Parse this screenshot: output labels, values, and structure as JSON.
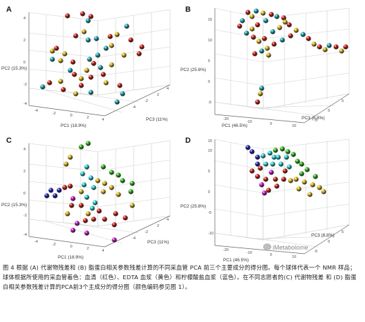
{
  "header_fragment": "",
  "panels": [
    {
      "id": "A",
      "pc2_label": "PC2 (15.3%)",
      "pc1_label": "PC1 (18.9%)",
      "pc3_label": "PC3 (11%)",
      "ticks_left": [
        "4",
        "2",
        "0",
        "-2",
        "-4"
      ],
      "ticks_bottom": [
        "-4",
        "-2",
        "0",
        "2",
        "4"
      ],
      "ticks_right": [
        "-4",
        "-2",
        "2",
        "4"
      ]
    },
    {
      "id": "B",
      "pc2_label": "PC2 (25.8%)",
      "pc1_label": "PC1 (46.5%)",
      "pc3_label": "PC3 (8.8%)",
      "ticks_left": [
        "-5",
        "0",
        "5",
        "10",
        "15"
      ],
      "ticks_bottom": [
        "-20",
        "-10",
        "0",
        "10"
      ],
      "ticks_right": [
        "-5",
        "0",
        "5"
      ]
    },
    {
      "id": "C",
      "pc2_label": "PC2 (15.3%)",
      "pc1_label": "PC1 (18.9%)",
      "pc3_label": "PC3 (11%)",
      "ticks_left": [
        "4",
        "2",
        "0",
        "-2",
        "-4"
      ],
      "ticks_bottom": [
        "-4",
        "-2",
        "0",
        "2",
        "4"
      ],
      "ticks_right": [
        "-4",
        "-2",
        "2",
        "4"
      ]
    },
    {
      "id": "D",
      "pc2_label": "PC2 (25.8%)",
      "pc1_label": "PC1 (46.5%)",
      "pc3_label": "PC3 (8.8%)",
      "ticks_left": [
        "-10",
        "-5",
        "0",
        "5",
        "10",
        "15"
      ],
      "ticks_bottom": [
        "-20",
        "-10",
        "0",
        "10"
      ],
      "ticks_right": [
        "-5",
        "0",
        "5"
      ]
    }
  ],
  "colors": {
    "red": "#c41a10",
    "yellow": "#d8b415",
    "blue": "#1aa2b0",
    "green": "#29b414",
    "cyan": "#27d0d8",
    "navy": "#1c1ca8",
    "magenta": "#c414c4",
    "grid": "#cfcfcf"
  },
  "watermark": "iMetabolome",
  "caption": "图 4 根据 (A) 代谢物残差和 (B) 脂蛋白相关参数残差计算的不同采血管 PCA 前三个主要成分的得分图。每个球体代表一个 NMR 样品；球体根据所使用的采血管着色：血清（红色）、EDTA 血浆（黄色）和柠檬酸盐血浆（蓝色）。在不同志愿者的(C) 代谢物残差 和 (D) 脂蛋白相关参数残差计算的PCA前3个主成分的得分图（颜色编码参见图 1）。"
}
